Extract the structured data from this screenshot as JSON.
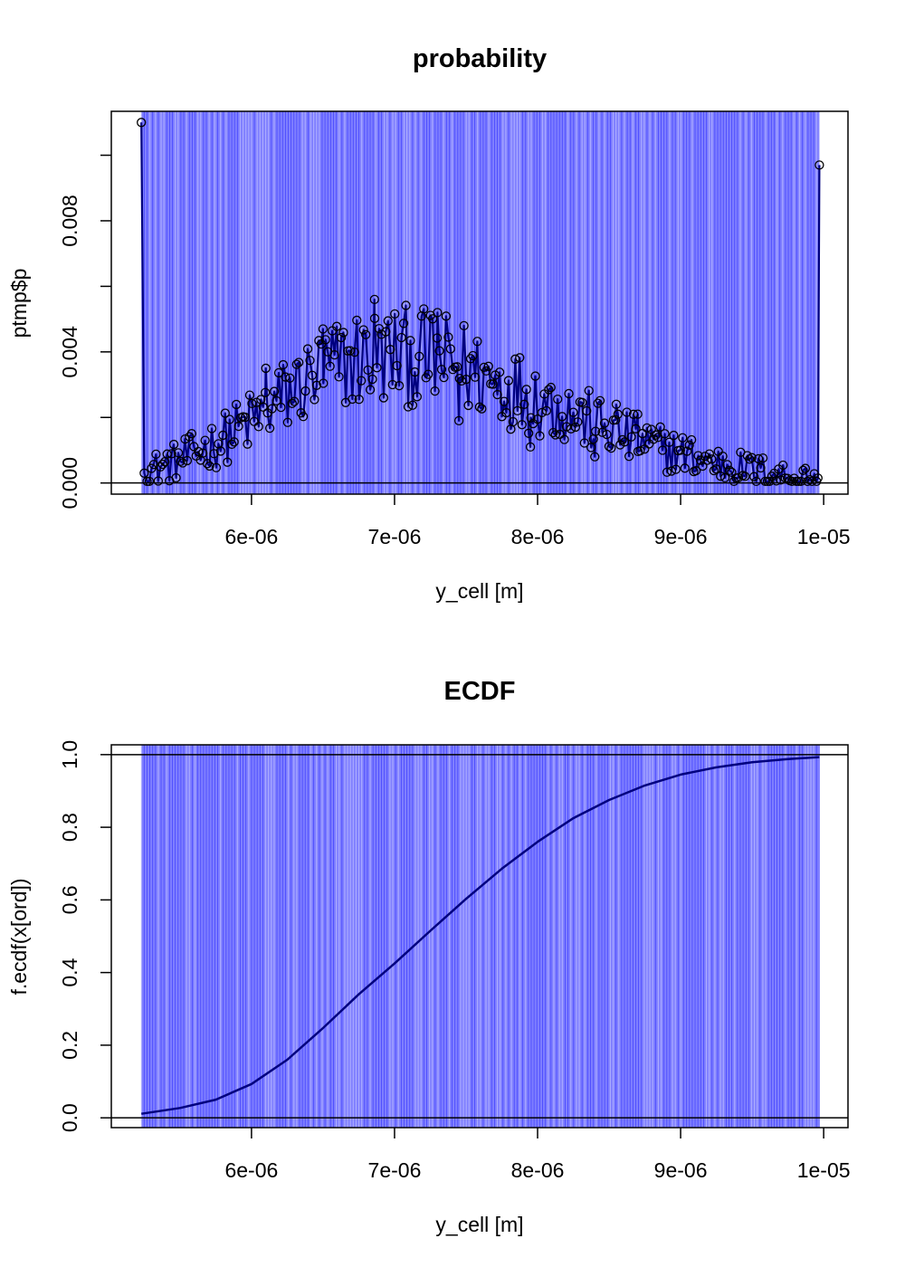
{
  "colors": {
    "line": "#00007f",
    "band": "#0000ff",
    "band_light": "#c8c8ff",
    "frame": "#000000"
  },
  "chart_data": [
    {
      "type": "line",
      "title": "probability",
      "xlabel": "y_cell [m]",
      "ylabel": "ptmp$p",
      "x_ticks": [
        6e-06,
        7e-06,
        8e-06,
        9e-06,
        1e-05
      ],
      "x_tick_labels": [
        "6e-06",
        "7e-06",
        "8e-06",
        "9e-06",
        "1e-05"
      ],
      "y_ticks": [
        0,
        0.004,
        0.008
      ],
      "y_tick_labels": [
        "0.000",
        "0.004",
        "0.008"
      ],
      "xlim": [
        5.02e-06,
        1.017e-05
      ],
      "ylim": [
        -0.00034,
        0.01134
      ],
      "markers": "open-circle",
      "reference_lines": [
        0
      ],
      "x_range": [
        5.23e-06,
        9.97e-06
      ],
      "endpoints": [
        {
          "x": 5.23e-06,
          "y": 0.011
        },
        {
          "x": 9.97e-06,
          "y": 0.0097
        }
      ],
      "envelope": [
        {
          "x": 5.3e-06,
          "y": 0.0004
        },
        {
          "x": 5.5e-06,
          "y": 0.0007
        },
        {
          "x": 5.75e-06,
          "y": 0.0012
        },
        {
          "x": 6e-06,
          "y": 0.0019
        },
        {
          "x": 6.25e-06,
          "y": 0.0027
        },
        {
          "x": 6.5e-06,
          "y": 0.0034
        },
        {
          "x": 6.75e-06,
          "y": 0.0038
        },
        {
          "x": 7e-06,
          "y": 0.0039
        },
        {
          "x": 7.25e-06,
          "y": 0.0038
        },
        {
          "x": 7.5e-06,
          "y": 0.0035
        },
        {
          "x": 7.75e-06,
          "y": 0.003
        },
        {
          "x": 8e-06,
          "y": 0.0026
        },
        {
          "x": 8.25e-06,
          "y": 0.0021
        },
        {
          "x": 8.5e-06,
          "y": 0.0016
        },
        {
          "x": 8.75e-06,
          "y": 0.0012
        },
        {
          "x": 9e-06,
          "y": 0.0009
        },
        {
          "x": 9.25e-06,
          "y": 0.0006
        },
        {
          "x": 9.5e-06,
          "y": 0.0004
        },
        {
          "x": 9.75e-06,
          "y": 0.0002
        },
        {
          "x": 9.95e-06,
          "y": 0.0001
        }
      ],
      "labeled_points": [
        {
          "x": 6.1e-06,
          "y": 0.0035
        },
        {
          "x": 6.5e-06,
          "y": 0.0047
        },
        {
          "x": 6.86e-06,
          "y": 0.0056
        },
        {
          "x": 7.3e-06,
          "y": 0.0052
        },
        {
          "x": 7.45e-06,
          "y": 0.0019
        },
        {
          "x": 7.95e-06,
          "y": 0.0011
        },
        {
          "x": 8.4e-06,
          "y": 0.0008
        },
        {
          "x": 8.55e-06,
          "y": 0.0024
        },
        {
          "x": 8.7e-06,
          "y": 0.0021
        }
      ]
    },
    {
      "type": "line",
      "title": "ECDF",
      "xlabel": "y_cell [m]",
      "ylabel": "f.ecdf(x[ord])",
      "x_ticks": [
        6e-06,
        7e-06,
        8e-06,
        9e-06,
        1e-05
      ],
      "x_tick_labels": [
        "6e-06",
        "7e-06",
        "8e-06",
        "9e-06",
        "1e-05"
      ],
      "y_ticks": [
        0,
        0.2,
        0.4,
        0.6,
        0.8,
        1.0
      ],
      "y_tick_labels": [
        "0.0",
        "0.2",
        "0.4",
        "0.6",
        "0.8",
        "1.0"
      ],
      "xlim": [
        5.02e-06,
        1.017e-05
      ],
      "ylim": [
        -0.027,
        1.027
      ],
      "reference_lines": [
        0,
        1
      ],
      "x_range": [
        5.23e-06,
        9.97e-06
      ],
      "series": [
        {
          "points": [
            {
              "x": 5.23e-06,
              "y": 0.011
            },
            {
              "x": 5.5e-06,
              "y": 0.027
            },
            {
              "x": 5.75e-06,
              "y": 0.05
            },
            {
              "x": 6e-06,
              "y": 0.093
            },
            {
              "x": 6.25e-06,
              "y": 0.16
            },
            {
              "x": 6.5e-06,
              "y": 0.247
            },
            {
              "x": 6.75e-06,
              "y": 0.34
            },
            {
              "x": 7e-06,
              "y": 0.425
            },
            {
              "x": 7.25e-06,
              "y": 0.515
            },
            {
              "x": 7.5e-06,
              "y": 0.603
            },
            {
              "x": 7.75e-06,
              "y": 0.686
            },
            {
              "x": 8e-06,
              "y": 0.76
            },
            {
              "x": 8.25e-06,
              "y": 0.825
            },
            {
              "x": 8.5e-06,
              "y": 0.875
            },
            {
              "x": 8.75e-06,
              "y": 0.915
            },
            {
              "x": 9e-06,
              "y": 0.945
            },
            {
              "x": 9.25e-06,
              "y": 0.965
            },
            {
              "x": 9.5e-06,
              "y": 0.979
            },
            {
              "x": 9.75e-06,
              "y": 0.988
            },
            {
              "x": 9.97e-06,
              "y": 0.993
            }
          ]
        }
      ]
    }
  ]
}
